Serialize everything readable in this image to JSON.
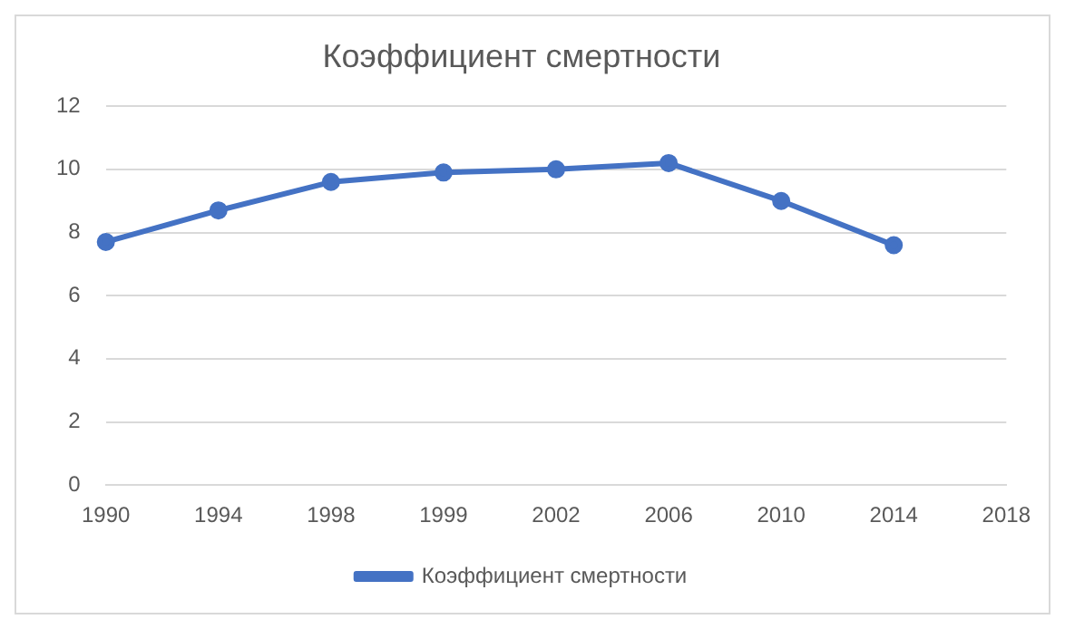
{
  "chart_data": {
    "type": "line",
    "title": "Коэффициент смертности",
    "categories": [
      "1990",
      "1994",
      "1998",
      "1999",
      "2002",
      "2006",
      "2010",
      "2014",
      "2018"
    ],
    "series": [
      {
        "name": "Коэффициент смертности",
        "color": "#4472c4",
        "values": [
          7.7,
          8.7,
          9.6,
          9.9,
          10.0,
          10.2,
          9.0,
          7.6,
          null
        ]
      }
    ],
    "ylim": [
      0,
      12
    ],
    "yticks": [
      0,
      2,
      4,
      6,
      8,
      10,
      12
    ],
    "grid": "y",
    "legend": "bottom",
    "marker": "circle",
    "line_style": "solid"
  }
}
